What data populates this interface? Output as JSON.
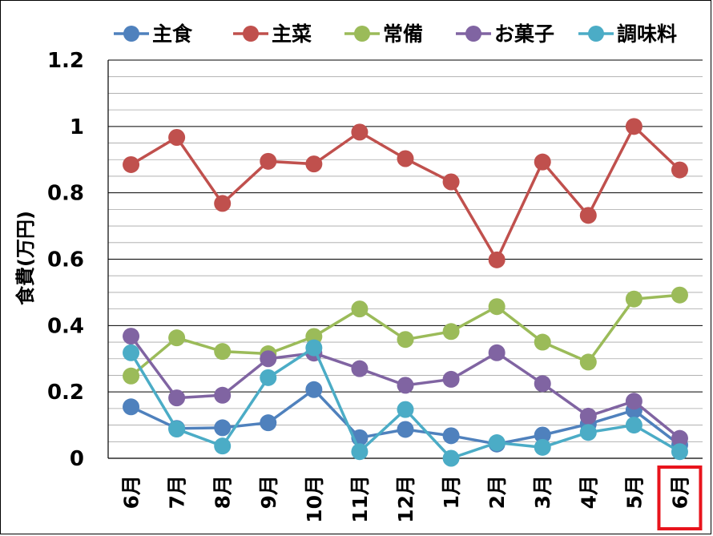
{
  "chart_data": {
    "type": "line",
    "title": "",
    "xlabel": "",
    "ylabel": "食費(万円)",
    "ylim": [
      0,
      1.2
    ],
    "yticks": [
      "0",
      "0.2",
      "0.4",
      "0.6",
      "0.8",
      "1",
      "1.2"
    ],
    "grid": "horizontal major and minor",
    "legend": "top",
    "categories": [
      "6月",
      "7月",
      "8月",
      "9月",
      "10月",
      "11月",
      "12月",
      "1月",
      "2月",
      "3月",
      "4月",
      "5月",
      "6月"
    ],
    "highlight_category_index": 12,
    "highlight_color": "#e8141c",
    "series": [
      {
        "name": "主食",
        "color": "#4f81bd",
        "values": [
          0.155,
          0.09,
          0.092,
          0.107,
          0.207,
          0.062,
          0.087,
          0.068,
          0.043,
          0.07,
          0.103,
          0.145,
          0.04
        ]
      },
      {
        "name": "主菜",
        "color": "#c0504d",
        "values": [
          0.885,
          0.967,
          0.768,
          0.895,
          0.887,
          0.983,
          0.903,
          0.833,
          0.598,
          0.893,
          0.732,
          1.0,
          0.869
        ]
      },
      {
        "name": "常備",
        "color": "#9bbb59",
        "values": [
          0.248,
          0.363,
          0.322,
          0.315,
          0.367,
          0.45,
          0.358,
          0.382,
          0.457,
          0.35,
          0.29,
          0.48,
          0.492
        ]
      },
      {
        "name": "お菓子",
        "color": "#8064a2",
        "values": [
          0.368,
          0.182,
          0.19,
          0.3,
          0.317,
          0.27,
          0.22,
          0.238,
          0.318,
          0.225,
          0.127,
          0.172,
          0.06
        ]
      },
      {
        "name": "調味料",
        "color": "#4bacc6",
        "values": [
          0.318,
          0.088,
          0.037,
          0.243,
          0.333,
          0.02,
          0.147,
          0.0,
          0.047,
          0.033,
          0.078,
          0.1,
          0.02
        ]
      }
    ]
  }
}
